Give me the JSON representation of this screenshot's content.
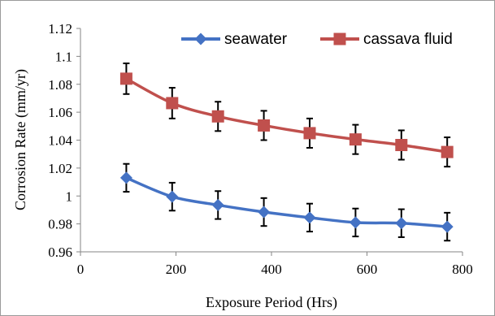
{
  "chart_data": {
    "type": "line",
    "xlabel": "Exposure Period (Hrs)",
    "ylabel": "Corrosion Rate (mm/yr)",
    "xlim": [
      0,
      800
    ],
    "ylim": [
      0.96,
      1.12
    ],
    "x_ticks": [
      "0",
      "200",
      "400",
      "600",
      "800"
    ],
    "y_ticks": [
      "0.96",
      "0.98",
      "1",
      "1.02",
      "1.04",
      "1.06",
      "1.08",
      "1.1",
      "1.12"
    ],
    "x_tick_values": [
      0,
      200,
      400,
      600,
      800
    ],
    "y_tick_values": [
      0.96,
      0.98,
      1.0,
      1.02,
      1.04,
      1.06,
      1.08,
      1.1,
      1.12
    ],
    "grid": false,
    "legend_position": "top-right",
    "x": [
      96,
      192,
      288,
      384,
      480,
      576,
      672,
      768
    ],
    "series": [
      {
        "name": "seawater",
        "color": "#4472c4",
        "marker": "diamond",
        "values": [
          1.013,
          0.9995,
          0.9935,
          0.9885,
          0.9845,
          0.981,
          0.9805,
          0.978
        ],
        "error": [
          0.01,
          0.01,
          0.01,
          0.01,
          0.01,
          0.01,
          0.01,
          0.01
        ]
      },
      {
        "name": "cassava fluid",
        "color": "#c0504d",
        "marker": "square",
        "values": [
          1.084,
          1.0665,
          1.057,
          1.0505,
          1.045,
          1.0405,
          1.0365,
          1.0315
        ],
        "error": [
          0.011,
          0.011,
          0.0105,
          0.0105,
          0.0105,
          0.0105,
          0.0105,
          0.0105
        ]
      }
    ]
  }
}
